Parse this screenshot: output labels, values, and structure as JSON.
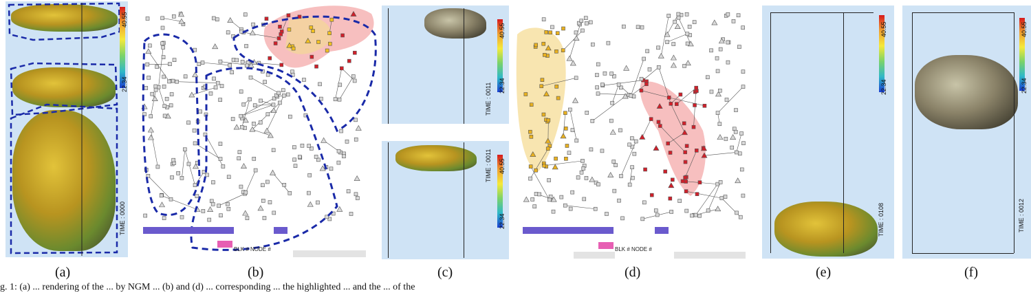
{
  "captions": [
    "(a)",
    "(b)",
    "(c)",
    "(d)",
    "(e)",
    "(f)"
  ],
  "colorbar": {
    "max": "40.55",
    "min": "22.34"
  },
  "time_labels": {
    "a": "TIME : 0000",
    "c_top": "TIME : 0011",
    "c_bottom": "TIME : 0011",
    "e": "TIME : 0108",
    "f": "TIME : 0012"
  },
  "graph_labels": {
    "blk_node": "BLK #  NODE #"
  },
  "caption_text": "g. 1: (a) ... rendering of the ... by NGM ... (b) and (d) ... corresponding ... the highlighted ... and the ... of the"
}
